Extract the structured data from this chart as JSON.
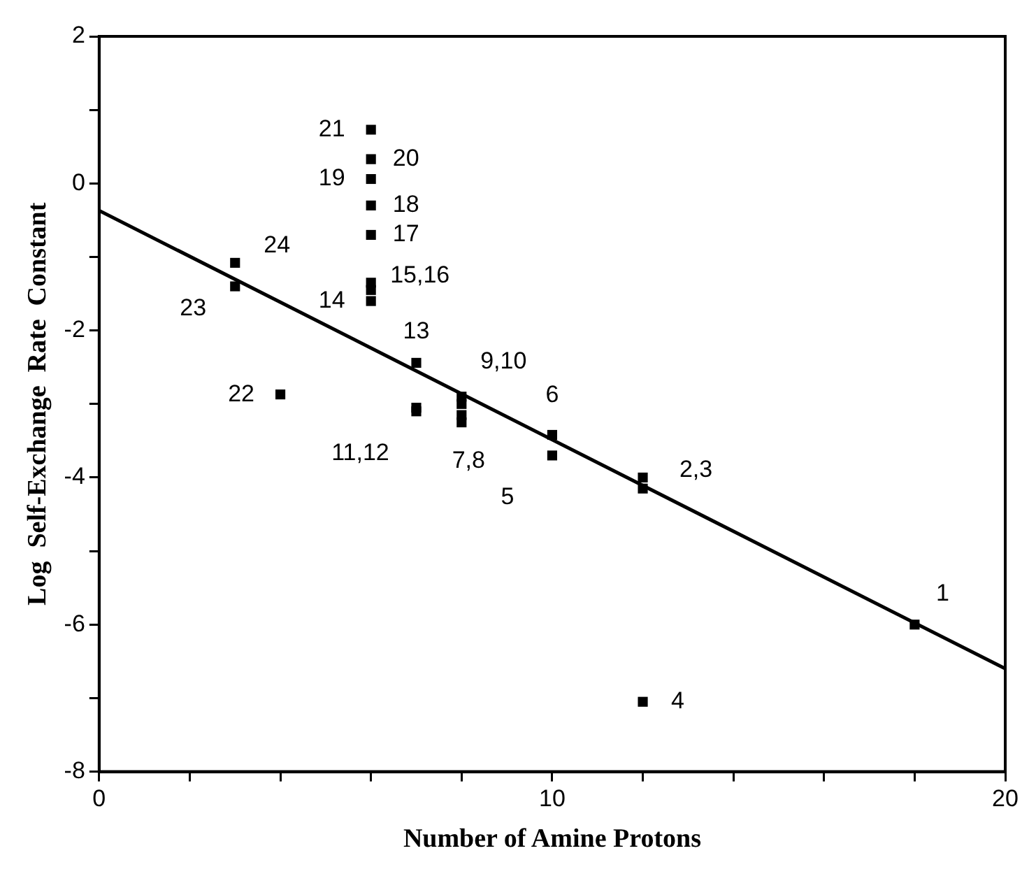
{
  "chart_data": {
    "type": "scatter",
    "xlabel": "Number of Amine Protons",
    "ylabel": "Log  Self-Exchange  Rate  Constant",
    "xlim": [
      0,
      20
    ],
    "ylim": [
      -8,
      2
    ],
    "marker": "square",
    "xticks": [
      0,
      {
        "value": 2,
        "label": null
      },
      {
        "value": 4,
        "label": null
      },
      {
        "value": 6,
        "label": null
      },
      {
        "value": 8,
        "label": null
      },
      10,
      {
        "value": 12,
        "label": null
      },
      {
        "value": 14,
        "label": null
      },
      {
        "value": 16,
        "label": null
      },
      {
        "value": 18,
        "label": null
      },
      20
    ],
    "yticks": [
      -8,
      {
        "value": -7,
        "label": null
      },
      -6,
      {
        "value": -5,
        "label": null
      },
      -4,
      {
        "value": -3,
        "label": null
      },
      -2,
      {
        "value": -1,
        "label": null
      },
      0,
      {
        "value": 1,
        "label": null
      },
      2
    ],
    "series": [
      {
        "color": "#000000",
        "x": [
          18,
          12,
          12,
          12,
          10,
          10,
          8,
          8,
          8,
          8,
          7,
          7,
          7,
          6,
          6,
          6,
          6,
          6,
          6,
          6,
          6,
          4,
          3,
          3
        ],
        "values": [
          -6,
          -4.0,
          -4.15,
          -7.05,
          -3.7,
          -3.42,
          -3.15,
          -3.25,
          -2.9,
          -3.0,
          -3.05,
          -3.1,
          -2.44,
          -1.6,
          -1.45,
          -1.35,
          -0.7,
          -0.3,
          0.06,
          0.33,
          0.73,
          -2.87,
          -1.4,
          -1.08
        ]
      },
      {
        "type": "line",
        "color": "#000000",
        "marker": "none",
        "x": [
          0,
          20
        ],
        "values": [
          -0.37,
          -6.6
        ]
      }
    ],
    "annotations": [
      {
        "text": "1",
        "x": 18,
        "y": -6
      },
      {
        "text": "2,3",
        "x": 12,
        "y": -4.0
      },
      {
        "text": "4",
        "x": 12,
        "y": -7.05
      },
      {
        "text": "5",
        "x": 10,
        "y": -3.7
      },
      {
        "text": "6",
        "x": 10,
        "y": -3.42
      },
      {
        "text": "7,8",
        "x": 8,
        "y": -3.25
      },
      {
        "text": "9,10",
        "x": 8,
        "y": -2.9
      },
      {
        "text": "11,12",
        "x": 7,
        "y": -3.1
      },
      {
        "text": "13",
        "x": 7,
        "y": -2.44
      },
      {
        "text": "14",
        "x": 6,
        "y": -1.6
      },
      {
        "text": "15,16",
        "x": 6,
        "y": -1.35
      },
      {
        "text": "17",
        "x": 6,
        "y": -0.7
      },
      {
        "text": "18",
        "x": 6,
        "y": -0.3
      },
      {
        "text": "19",
        "x": 6,
        "y": 0.06
      },
      {
        "text": "20",
        "x": 6,
        "y": 0.33
      },
      {
        "text": "21",
        "x": 6,
        "y": 0.73
      },
      {
        "text": "22",
        "x": 4,
        "y": -2.87
      },
      {
        "text": "23",
        "x": 3,
        "y": -1.4
      },
      {
        "text": "24",
        "x": 3,
        "y": -1.08
      }
    ]
  }
}
